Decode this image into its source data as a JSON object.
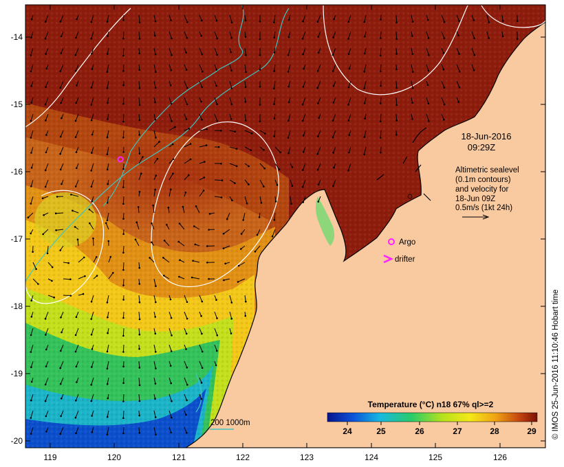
{
  "map": {
    "timestamp": {
      "date": "18-Jun-2016",
      "time": "09:29Z"
    },
    "annotation_lines": [
      "Altimetric sealevel",
      "(0.1m contours)",
      "and velocity for",
      "18-Jun 09Z",
      "0.5m/s (1kt 24h)"
    ],
    "legend": {
      "argo_label": "Argo",
      "drifter_label": "drifter",
      "depth_label": "200  1000m"
    },
    "colorbar": {
      "title": "Temperature (°C) n18 67% ql>=2",
      "ticks": [
        "24",
        "25",
        "26",
        "27",
        "28",
        "29"
      ]
    },
    "axes": {
      "lat_ticks": [
        "-14",
        "-15",
        "-16",
        "-17",
        "-18",
        "-19",
        "-20"
      ],
      "lon_ticks": [
        "119",
        "120",
        "121",
        "122",
        "123",
        "124",
        "125",
        "126"
      ]
    },
    "credit": "© IMOS 25-Jun-2016 11:10:46 Hobart time",
    "colors": {
      "land": "#f9c9a0",
      "warm": "#8b1a0c",
      "cyan_contour": "#3fc4c0",
      "argo": "#ff22ff"
    }
  }
}
